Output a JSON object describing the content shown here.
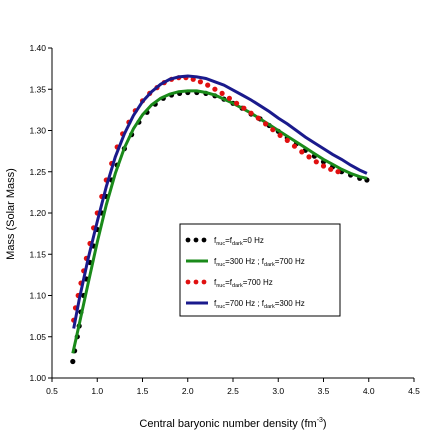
{
  "chart_data": {
    "type": "line",
    "title": "",
    "xlabel": "Central baryonic number density (fm",
    "xlabel_sup": "-3",
    "xlabel_tail": ")",
    "ylabel": "Mass (Solar Mass)",
    "xlim": [
      0.5,
      4.5
    ],
    "ylim": [
      1.0,
      1.4
    ],
    "x_ticks": [
      "0.5",
      "1.0",
      "1.5",
      "2.0",
      "2.5",
      "3.0",
      "3.5",
      "4.0",
      "4.5"
    ],
    "y_ticks": [
      "1.00",
      "1.05",
      "1.10",
      "1.15",
      "1.20",
      "1.25",
      "1.30",
      "1.35",
      "1.40"
    ],
    "grid": false,
    "legend_position": "center-right",
    "series": [
      {
        "key": "s1",
        "style": "dots",
        "color": "#000000",
        "legend": {
          "f1": "f",
          "s1": "nuc",
          "m1": "=f",
          "s2": "dark",
          "m2": "=0 Hz",
          "s3": "",
          "m3": ""
        },
        "x": [
          0.73,
          0.75,
          0.78,
          0.8,
          0.82,
          0.85,
          0.88,
          0.92,
          0.96,
          1.0,
          1.05,
          1.1,
          1.16,
          1.22,
          1.3,
          1.38,
          1.46,
          1.55,
          1.64,
          1.73,
          1.82,
          1.91,
          2.0,
          2.1,
          2.2,
          2.3,
          2.4,
          2.5,
          2.6,
          2.7,
          2.8,
          2.9,
          3.0,
          3.1,
          3.2,
          3.3,
          3.4,
          3.5,
          3.6,
          3.7,
          3.8,
          3.9,
          3.98
        ],
        "y": [
          1.02,
          1.033,
          1.05,
          1.063,
          1.08,
          1.1,
          1.12,
          1.14,
          1.16,
          1.18,
          1.2,
          1.22,
          1.24,
          1.258,
          1.278,
          1.295,
          1.31,
          1.322,
          1.332,
          1.339,
          1.343,
          1.345,
          1.346,
          1.346,
          1.345,
          1.342,
          1.338,
          1.333,
          1.327,
          1.32,
          1.314,
          1.306,
          1.299,
          1.291,
          1.284,
          1.276,
          1.269,
          1.262,
          1.256,
          1.25,
          1.246,
          1.242,
          1.24
        ]
      },
      {
        "key": "s2",
        "style": "line",
        "color": "#1a8a1a",
        "legend": {
          "f1": "f",
          "s1": "nuc",
          "m1": "=300 Hz ; f",
          "s2": "dark",
          "m2": "=700 Hz",
          "s3": "",
          "m3": ""
        },
        "x": [
          0.73,
          0.8,
          0.9,
          1.0,
          1.1,
          1.2,
          1.3,
          1.4,
          1.5,
          1.6,
          1.7,
          1.8,
          1.9,
          2.0,
          2.1,
          2.2,
          2.3,
          2.4,
          2.5,
          2.6,
          2.7,
          2.8,
          2.9,
          3.0,
          3.1,
          3.2,
          3.3,
          3.4,
          3.5,
          3.6,
          3.7,
          3.8,
          3.9,
          3.98
        ],
        "y": [
          1.03,
          1.065,
          1.115,
          1.165,
          1.21,
          1.248,
          1.279,
          1.302,
          1.319,
          1.331,
          1.339,
          1.344,
          1.347,
          1.348,
          1.348,
          1.346,
          1.343,
          1.338,
          1.333,
          1.327,
          1.321,
          1.314,
          1.307,
          1.3,
          1.293,
          1.286,
          1.279,
          1.272,
          1.265,
          1.259,
          1.253,
          1.248,
          1.244,
          1.242
        ]
      },
      {
        "key": "s3",
        "style": "dots",
        "color": "#e01010",
        "legend": {
          "f1": "f",
          "s1": "nuc",
          "m1": "=f",
          "s2": "dark",
          "m2": "=700 Hz",
          "s3": "",
          "m3": ""
        },
        "x": [
          0.74,
          0.76,
          0.79,
          0.82,
          0.85,
          0.88,
          0.92,
          0.96,
          1.0,
          1.05,
          1.1,
          1.16,
          1.22,
          1.28,
          1.35,
          1.42,
          1.5,
          1.58,
          1.66,
          1.74,
          1.82,
          1.9,
          1.98,
          2.06,
          2.14,
          2.22,
          2.3,
          2.38,
          2.46,
          2.54,
          2.62,
          2.7,
          2.78,
          2.86,
          2.94,
          3.02,
          3.1,
          3.18,
          3.26,
          3.34,
          3.42,
          3.5,
          3.58,
          3.66
        ],
        "y": [
          1.07,
          1.085,
          1.1,
          1.115,
          1.13,
          1.145,
          1.163,
          1.182,
          1.2,
          1.22,
          1.24,
          1.26,
          1.28,
          1.296,
          1.31,
          1.324,
          1.336,
          1.345,
          1.352,
          1.358,
          1.362,
          1.364,
          1.364,
          1.362,
          1.359,
          1.355,
          1.35,
          1.345,
          1.339,
          1.333,
          1.327,
          1.321,
          1.315,
          1.308,
          1.301,
          1.294,
          1.288,
          1.281,
          1.274,
          1.268,
          1.262,
          1.257,
          1.253,
          1.25
        ]
      },
      {
        "key": "s4",
        "style": "line",
        "color": "#1a1a8c",
        "legend": {
          "f1": "f",
          "s1": "nuc",
          "m1": "=700 Hz ; f",
          "s2": "dark",
          "m2": "=300 Hz",
          "s3": "",
          "m3": ""
        },
        "x": [
          0.74,
          0.8,
          0.9,
          1.0,
          1.1,
          1.2,
          1.3,
          1.4,
          1.5,
          1.6,
          1.7,
          1.8,
          1.9,
          2.0,
          2.1,
          2.2,
          2.3,
          2.4,
          2.5,
          2.6,
          2.7,
          2.8,
          2.9,
          3.0,
          3.1,
          3.2,
          3.3,
          3.4,
          3.5,
          3.6,
          3.7,
          3.8,
          3.9,
          3.98
        ],
        "y": [
          1.06,
          1.095,
          1.145,
          1.19,
          1.232,
          1.268,
          1.296,
          1.318,
          1.335,
          1.347,
          1.356,
          1.362,
          1.365,
          1.366,
          1.365,
          1.363,
          1.359,
          1.355,
          1.349,
          1.343,
          1.337,
          1.33,
          1.323,
          1.315,
          1.308,
          1.3,
          1.292,
          1.285,
          1.278,
          1.271,
          1.265,
          1.258,
          1.252,
          1.248
        ]
      }
    ]
  }
}
